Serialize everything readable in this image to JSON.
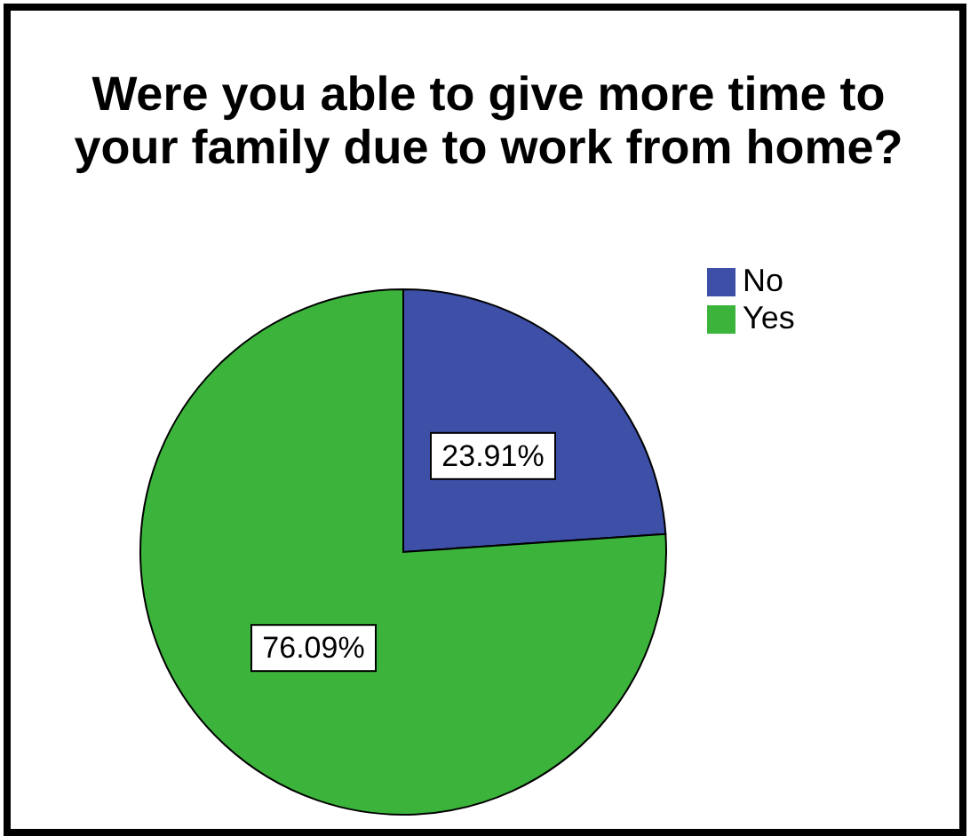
{
  "chart_data": {
    "type": "pie",
    "title": "Were you able to give more time to your family due to work from home?",
    "categories": [
      "No",
      "Yes"
    ],
    "values": [
      23.91,
      76.09
    ],
    "colors": [
      "#3d4fa6",
      "#3cb43c"
    ],
    "value_labels": [
      "23.91%",
      "76.09%"
    ],
    "legend": "top right"
  }
}
